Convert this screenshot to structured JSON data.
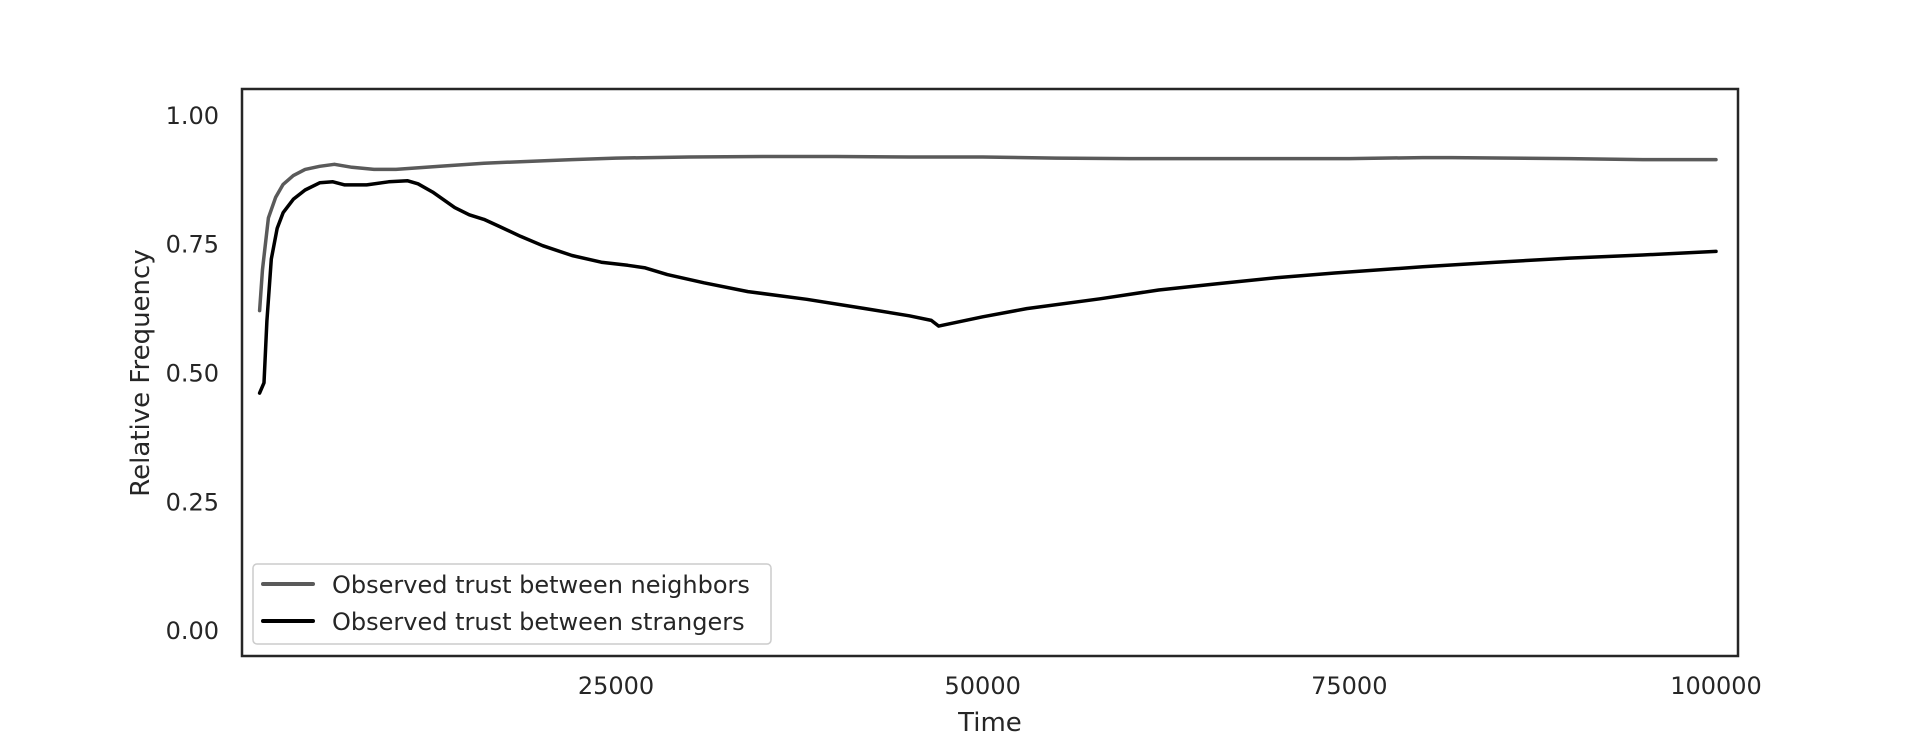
{
  "chart_data": {
    "type": "line",
    "title": "",
    "xlabel": "Time",
    "ylabel": "Relative Frequency",
    "xlim": [
      -500,
      101500
    ],
    "ylim": [
      -0.05,
      1.05
    ],
    "xticks": [
      25000,
      50000,
      75000,
      100000
    ],
    "xtick_labels": [
      "25000",
      "50000",
      "75000",
      "100000"
    ],
    "yticks": [
      0.0,
      0.25,
      0.5,
      0.75,
      1.0
    ],
    "ytick_labels": [
      "0.00",
      "0.25",
      "0.50",
      "0.75",
      "1.00"
    ],
    "grid": false,
    "legend_position": "lower-left",
    "series": [
      {
        "name": "Observed trust between neighbors",
        "color": "#5a5a5a",
        "x": [
          700,
          900,
          1300,
          1800,
          2300,
          3000,
          3800,
          4800,
          5800,
          7000,
          8500,
          10000,
          13000,
          16000,
          22000,
          25000,
          30000,
          35000,
          40000,
          45000,
          47000,
          50000,
          55000,
          60000,
          65000,
          70000,
          75000,
          80000,
          82000,
          90000,
          95000,
          100000
        ],
        "y": [
          0.62,
          0.7,
          0.8,
          0.84,
          0.865,
          0.882,
          0.894,
          0.9,
          0.904,
          0.898,
          0.894,
          0.894,
          0.9,
          0.906,
          0.913,
          0.916,
          0.918,
          0.919,
          0.919,
          0.918,
          0.918,
          0.918,
          0.916,
          0.915,
          0.915,
          0.915,
          0.915,
          0.917,
          0.917,
          0.915,
          0.913,
          0.913
        ]
      },
      {
        "name": "Observed trust between strangers",
        "color": "#000000",
        "x": [
          700,
          1000,
          1200,
          1500,
          1900,
          2300,
          3000,
          3800,
          4800,
          5700,
          6500,
          8000,
          9500,
          10800,
          11500,
          12500,
          14000,
          15000,
          16000,
          17000,
          18500,
          20000,
          22000,
          24000,
          25800,
          27000,
          28500,
          31000,
          34000,
          38000,
          42000,
          45000,
          46500,
          47000,
          50000,
          53000,
          58000,
          62000,
          66000,
          70000,
          74000,
          80000,
          85000,
          90000,
          95000,
          100000
        ],
        "y": [
          0.46,
          0.48,
          0.6,
          0.72,
          0.78,
          0.81,
          0.836,
          0.854,
          0.868,
          0.87,
          0.864,
          0.864,
          0.87,
          0.872,
          0.866,
          0.85,
          0.82,
          0.806,
          0.797,
          0.784,
          0.764,
          0.746,
          0.727,
          0.714,
          0.708,
          0.703,
          0.69,
          0.674,
          0.657,
          0.642,
          0.624,
          0.61,
          0.601,
          0.59,
          0.608,
          0.624,
          0.643,
          0.66,
          0.672,
          0.684,
          0.693,
          0.705,
          0.714,
          0.722,
          0.728,
          0.735
        ]
      }
    ]
  }
}
